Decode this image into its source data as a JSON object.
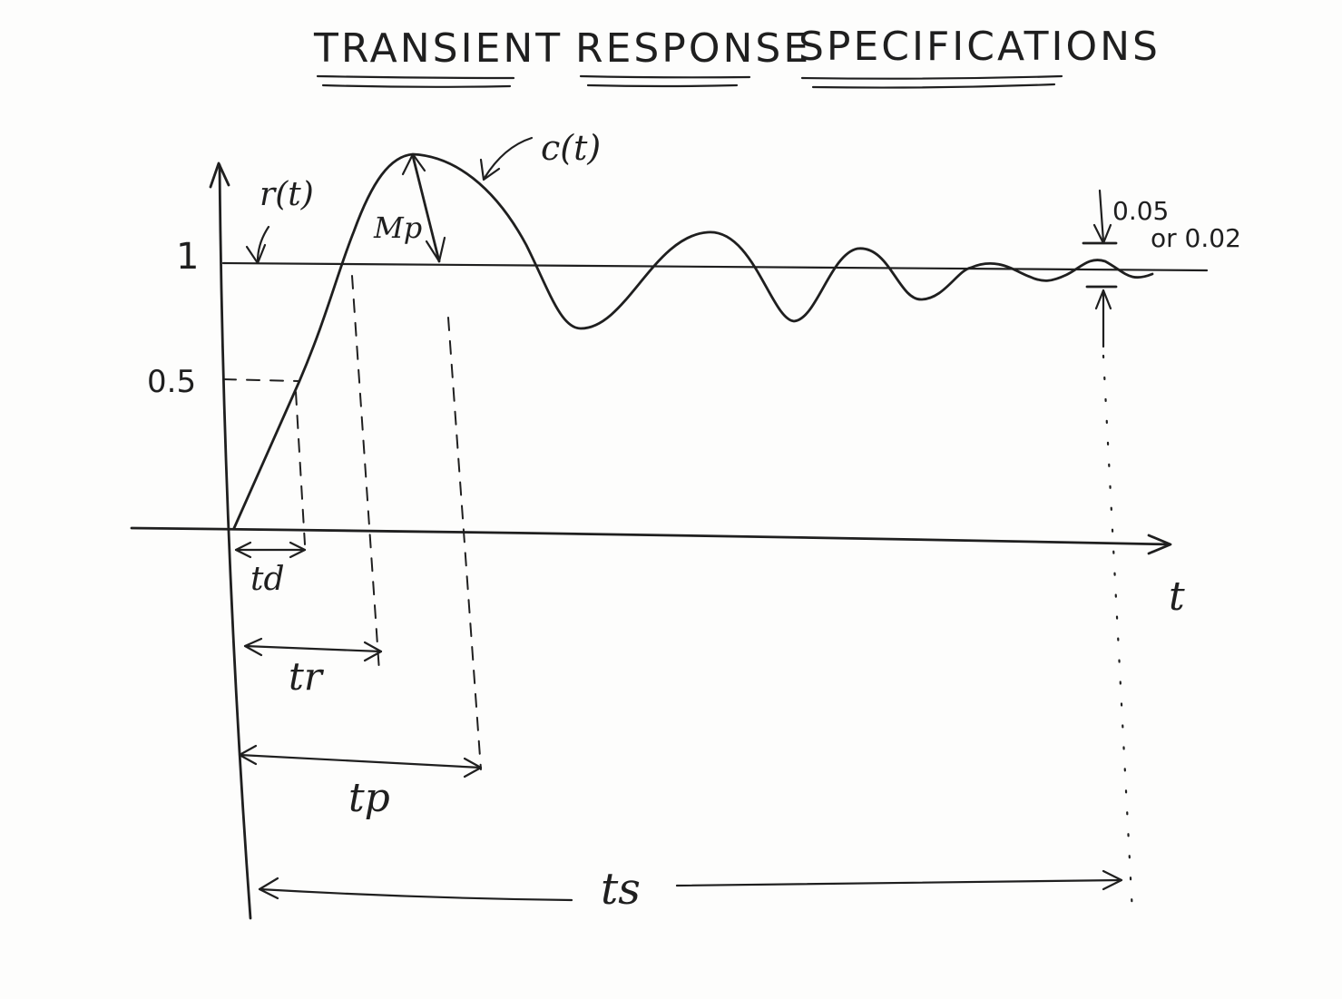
{
  "title": {
    "word1": "TRANSIENT",
    "word2": "RESPONSE",
    "word3": "SPECIFICATIONS"
  },
  "labels": {
    "input": "r(t)",
    "output": "c(t)",
    "overshoot": "Mp",
    "tolerance_line1": "0.05",
    "tolerance_line2": "or 0.02",
    "time_axis": "t",
    "delay_time": "td",
    "rise_time": "tr",
    "peak_time": "tp",
    "settling_time": "ts"
  },
  "y_ticks": {
    "one": "1",
    "half": "0.5"
  },
  "colors": {
    "ink": "#1f1f1f",
    "paper": "#fdfdfc"
  }
}
